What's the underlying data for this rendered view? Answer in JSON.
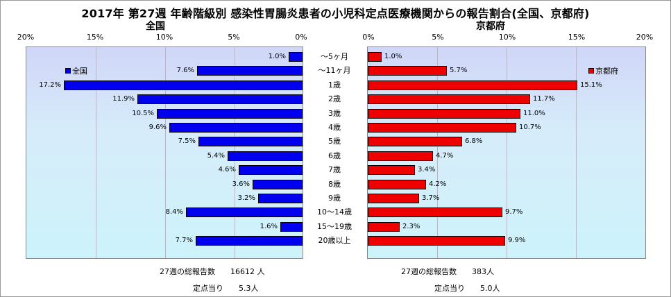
{
  "title": "2017年 第27週 年齢階級別 感染性胃腸炎患者の小児科定点医療機関からの報告割合(全国、京都府)",
  "colors": {
    "national": "#0000ee",
    "kyoto": "#ee0000",
    "plot_top": "#d0d6f7",
    "plot_bottom": "#cdf3fb"
  },
  "footer": {
    "national_total": "27週の総報告数　　16612 人",
    "national_per": "定点当り　　5.3人",
    "kyoto_total": "27週の総報告数　　383人",
    "kyoto_per": "定点当り　　5.0人"
  },
  "chart_data": [
    {
      "type": "bar",
      "title": "全国",
      "orientation": "horizontal-reversed",
      "categories": [
        "～5ヶ月",
        "～11ヶ月",
        "1歳",
        "2歳",
        "3歳",
        "4歳",
        "5歳",
        "6歳",
        "7歳",
        "8歳",
        "9歳",
        "10～14歳",
        "15～19歳",
        "20歳以上"
      ],
      "series": [
        {
          "name": "全国",
          "values": [
            1.0,
            7.6,
            17.2,
            11.9,
            10.5,
            9.6,
            7.5,
            5.4,
            4.6,
            3.6,
            3.2,
            8.4,
            1.6,
            7.7
          ],
          "labels": [
            "1.0%",
            "7.6%",
            "17.2%",
            "11.9%",
            "10.5%",
            "9.6%",
            "7.5%",
            "5.4%",
            "4.6%",
            "3.6%",
            "3.2%",
            "8.4%",
            "1.6%",
            "7.7%"
          ]
        }
      ],
      "xticks": [
        "20%",
        "15%",
        "10%",
        "5%",
        "0%"
      ],
      "xlim": [
        20,
        0
      ],
      "grid": true,
      "legend": "top-left"
    },
    {
      "type": "bar",
      "title": "京都府",
      "orientation": "horizontal",
      "categories": [
        "～5ヶ月",
        "～11ヶ月",
        "1歳",
        "2歳",
        "3歳",
        "4歳",
        "5歳",
        "6歳",
        "7歳",
        "8歳",
        "9歳",
        "10～14歳",
        "15～19歳",
        "20歳以上"
      ],
      "series": [
        {
          "name": "京都府",
          "values": [
            1.0,
            5.7,
            15.1,
            11.7,
            11.0,
            10.7,
            6.8,
            4.7,
            3.4,
            4.2,
            3.7,
            9.7,
            2.3,
            9.9
          ],
          "labels": [
            "1.0%",
            "5.7%",
            "15.1%",
            "11.7%",
            "11.0%",
            "10.7%",
            "6.8%",
            "4.7%",
            "3.4%",
            "4.2%",
            "3.7%",
            "9.7%",
            "2.3%",
            "9.9%"
          ]
        }
      ],
      "xticks": [
        "0%",
        "5%",
        "10%",
        "15%",
        "20%"
      ],
      "xlim": [
        0,
        20
      ],
      "grid": true,
      "legend": "top-right"
    }
  ]
}
